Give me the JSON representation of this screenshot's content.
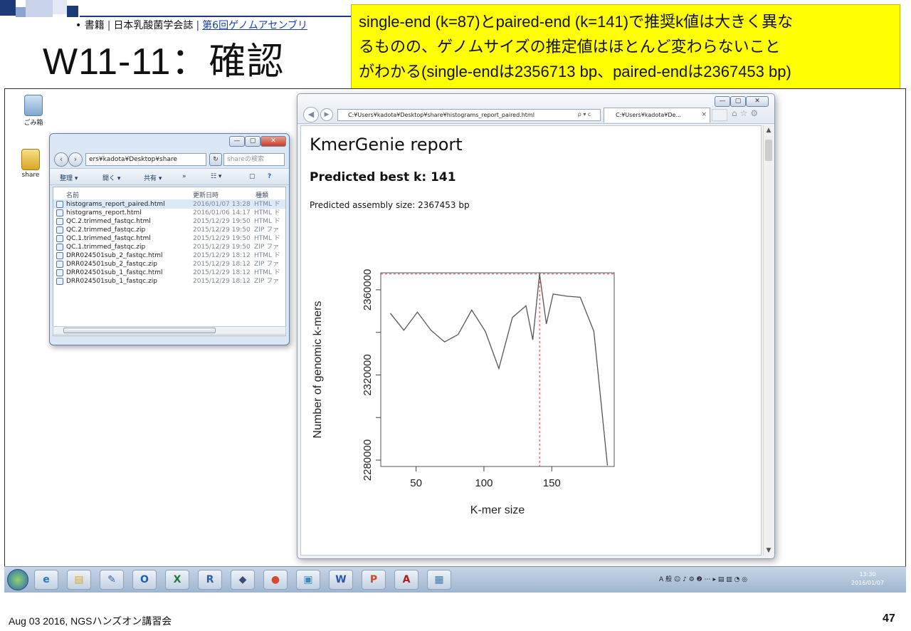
{
  "slide": {
    "reference": {
      "bullet": "•",
      "category": "書籍",
      "journal": "日本乳酸菌学会誌",
      "link_text": "第6回ゲノムアセンブリ"
    },
    "title": "W11-11：確認",
    "callout_lines": [
      "single-end (k=87)とpaired-end (k=141)で推奨k値は大きく異な",
      "るものの、ゲノムサイズの推定値はほとんど変わらないこと",
      "がわかる(single-endは2356713 bp、paired-endは2367453 bp)"
    ],
    "footer": "Aug 03 2016, NGSハンズオン講習会",
    "page_number": "47"
  },
  "desktop": {
    "icons": [
      {
        "label": "ごみ箱",
        "icon": "recycle-bin-icon"
      },
      {
        "label": "share",
        "icon": "folder-icon"
      }
    ]
  },
  "explorer": {
    "address": "ers¥kadota¥Desktop¥share",
    "search_placeholder": "shareの検索",
    "toolbar": {
      "organize": "整理 ▾",
      "open": "開く ▾",
      "share": "共有 ▾",
      "more": "»"
    },
    "columns": {
      "name": "名前",
      "date": "更新日時",
      "type": "種類"
    },
    "files": [
      {
        "name": "histograms_report_paired.html",
        "date": "2016/01/07 13:28",
        "type": "HTML ド"
      },
      {
        "name": "histograms_report.html",
        "date": "2016/01/06 14:17",
        "type": "HTML ド"
      },
      {
        "name": "QC.2.trimmed_fastqc.html",
        "date": "2015/12/29 19:50",
        "type": "HTML ド"
      },
      {
        "name": "QC.2.trimmed_fastqc.zip",
        "date": "2015/12/29 19:50",
        "type": "ZIP ファ"
      },
      {
        "name": "QC.1.trimmed_fastqc.html",
        "date": "2015/12/29 19:50",
        "type": "HTML ド"
      },
      {
        "name": "QC.1.trimmed_fastqc.zip",
        "date": "2015/12/29 19:50",
        "type": "ZIP ファ"
      },
      {
        "name": "DRR024501sub_2_fastqc.html",
        "date": "2015/12/29 18:12",
        "type": "HTML ド"
      },
      {
        "name": "DRR024501sub_2_fastqc.zip",
        "date": "2015/12/29 18:12",
        "type": "ZIP ファ"
      },
      {
        "name": "DRR024501sub_1_fastqc.html",
        "date": "2015/12/29 18:12",
        "type": "HTML ド"
      },
      {
        "name": "DRR024501sub_1_fastqc.zip",
        "date": "2015/12/29 18:12",
        "type": "ZIP ファ"
      }
    ]
  },
  "browser": {
    "address": "C:¥Users¥kadota¥Desktop¥share¥histograms_report_paired.html",
    "address_controls": "ρ ▾ c",
    "tab_title": "C:¥Users¥kadota¥De...",
    "tab_close": "×",
    "report_title": "KmerGenie report",
    "best_k": "Predicted best k: 141",
    "assembly_size": "Predicted assembly size: 2367453 bp",
    "scroll_up": "▲",
    "scroll_down": "▼"
  },
  "chart_data": {
    "type": "line",
    "xlabel": "K-mer size",
    "ylabel": "Number of genomic k-mers",
    "xlim": [
      24,
      196
    ],
    "ylim": [
      2277000,
      2368000
    ],
    "xticks": [
      50,
      100,
      150
    ],
    "yticks": [
      2280000,
      2300000,
      2320000,
      2340000,
      2360000
    ],
    "ytick_labels": [
      "2280000",
      "",
      "2320000",
      "",
      "2360000"
    ],
    "line_color": "#555555",
    "x": [
      31,
      41,
      51,
      61,
      71,
      81,
      91,
      101,
      111,
      121,
      131,
      136,
      141,
      146,
      151,
      161,
      171,
      181,
      191
    ],
    "y": [
      2349000,
      2341000,
      2349500,
      2341000,
      2335500,
      2339000,
      2350500,
      2340500,
      2323000,
      2347000,
      2352500,
      2336500,
      2367453,
      2344000,
      2358000,
      2357000,
      2356500,
      2340500,
      2277500
    ],
    "best_k": 141,
    "best_size": 2367453,
    "reference_color": "#ff3030"
  },
  "taskbar": {
    "apps": [
      "ie-icon",
      "explorer-icon",
      "notepad-icon",
      "outlook-icon",
      "excel-icon",
      "r-icon",
      "virtualbox-icon",
      "chrome-icon",
      "paint-icon",
      "word-icon",
      "powerpoint-icon",
      "acrobat-icon",
      "photos-icon"
    ],
    "app_glyphs": [
      "e",
      "▤",
      "✎",
      "O",
      "X",
      "R",
      "◆",
      "●",
      "▣",
      "W",
      "P",
      "A",
      "▦"
    ],
    "app_colors": [
      "#1f77d0",
      "#d9a526",
      "#3a5fa0",
      "#1b5fb5",
      "#1e7a3c",
      "#2b5fb0",
      "#3a4a7a",
      "#d44a2a",
      "#3a8ac0",
      "#2a55b0",
      "#d24a1e",
      "#b31b1b",
      "#3a7ab0"
    ],
    "tray": "A 般 ☺ ♪ ⚙ ❷ ⋯ ▸ ▤ ▥ ◔ ◎",
    "time": "13:30",
    "date": "2016/01/07"
  }
}
